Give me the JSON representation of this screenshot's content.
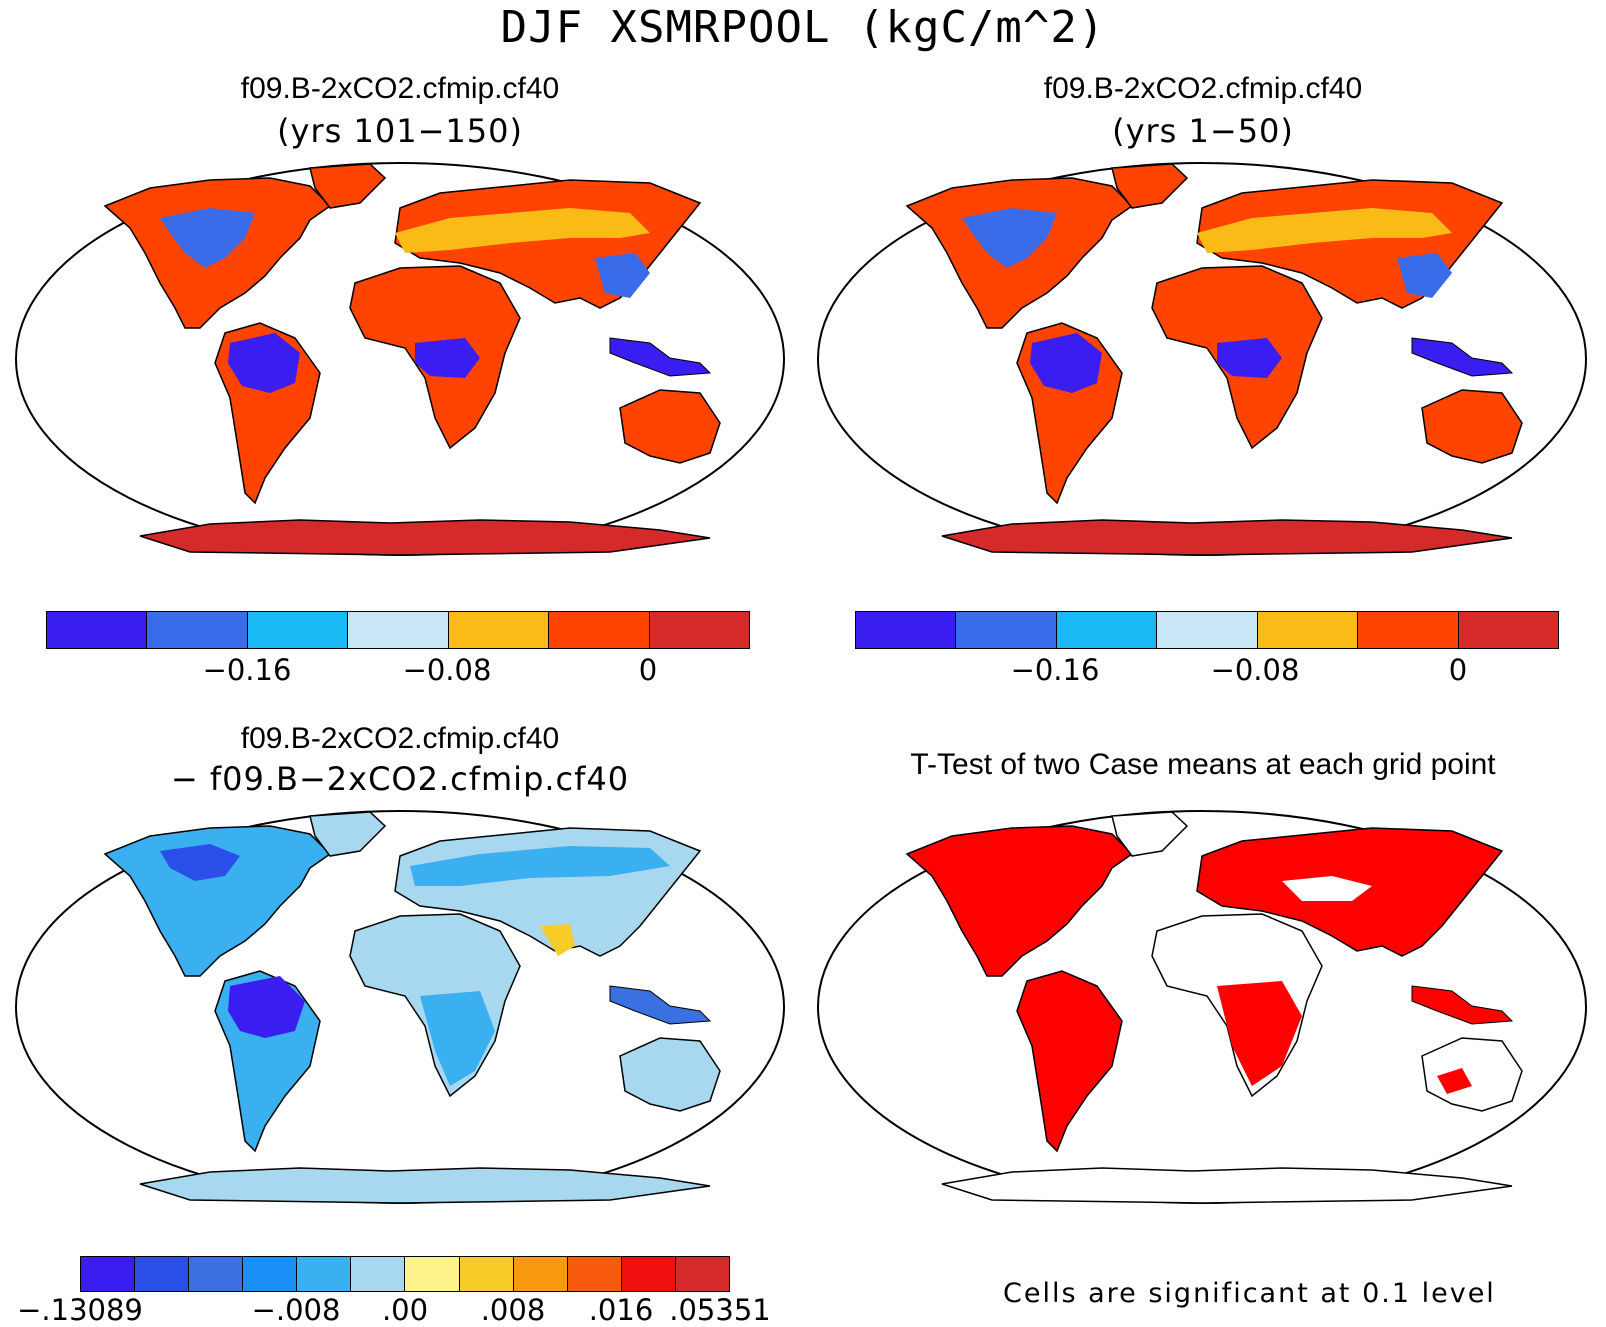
{
  "title": "DJF XSMRPOOL (kgC/m^2)",
  "panels": [
    {
      "title": "f09.B-2xCO2.cfmip.cf40",
      "subtitle": "(yrs 101−150)",
      "kind": "absolute"
    },
    {
      "title": "f09.B-2xCO2.cfmip.cf40",
      "subtitle": "(yrs 1−50)",
      "kind": "absolute"
    },
    {
      "title": "f09.B-2xCO2.cfmip.cf40",
      "subtitle": "− f09.B−2xCO2.cfmip.cf40",
      "kind": "difference"
    },
    {
      "title": "T-Test of two Case means at each grid point",
      "subtitle": "",
      "kind": "ttest"
    }
  ],
  "colorbar_abs": {
    "colors": [
      "#3a1df0",
      "#3a6be8",
      "#18b9f5",
      "#c8e6f5",
      "#fbbb16",
      "#ff4300",
      "#d62a2a"
    ],
    "ticks": [
      "−0.16",
      "−0.08",
      "0"
    ]
  },
  "colorbar_diff": {
    "colors": [
      "#3a1df0",
      "#2a4fe8",
      "#3a70e0",
      "#1a8ff5",
      "#3ab0f0",
      "#a8d8f0",
      "#fdf38a",
      "#f8cc28",
      "#f89a10",
      "#f85a10",
      "#f01010",
      "#d62a2a"
    ],
    "ticks": [
      "−.13089",
      "−.008",
      ".00",
      ".008",
      ".016",
      ".05351"
    ]
  },
  "ttest_note": "Cells are significant at 0.1 level"
}
